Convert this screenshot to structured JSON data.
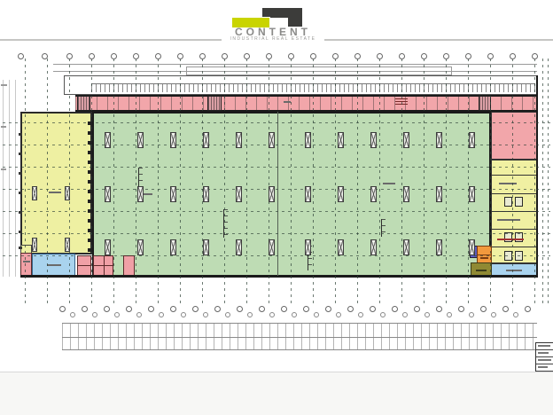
{
  "logo": {
    "name": "CONTENT",
    "tagline": "INDUSTRIAL REAL ESTATE",
    "mark_colors": {
      "dark": "#3c3c3a",
      "yellow_green": "#c9d400"
    }
  },
  "drawing": {
    "type": "industrial-building-floor-plan",
    "zones": [
      {
        "id": "top-dock-band",
        "color": "#ffffff"
      },
      {
        "id": "top-strip",
        "color": "#f2a6aa"
      },
      {
        "id": "left-hall",
        "color": "#eef0a2"
      },
      {
        "id": "main-hall",
        "color": "#bedcb4"
      },
      {
        "id": "right-wing-upper",
        "color": "#f2a6aa"
      },
      {
        "id": "right-wing-rooms",
        "color": "#f0f0a2"
      },
      {
        "id": "right-wing-bottom",
        "color": "#a9d3ee"
      },
      {
        "id": "bottom-left-blue",
        "color": "#a9d3ee"
      },
      {
        "id": "bottom-left-pink-blocks",
        "color": "#f0a0a6"
      },
      {
        "id": "block-indigo",
        "color": "#5c5cbe"
      },
      {
        "id": "block-orange",
        "color": "#f2993d"
      },
      {
        "id": "block-olive",
        "color": "#8f8933"
      }
    ],
    "grid": {
      "top_bubble_count": 24,
      "bottom_bubble_row1_count": 22,
      "bottom_bubble_row2_count": 21,
      "roof_vent_columns": 12,
      "roof_vent_rows": 3
    },
    "title_block": {
      "visible": true,
      "rows": 8
    }
  },
  "page": {
    "background": "#ffffff",
    "footer_strip": "#f7f7f5",
    "header_rule": "#c6c6c4"
  }
}
